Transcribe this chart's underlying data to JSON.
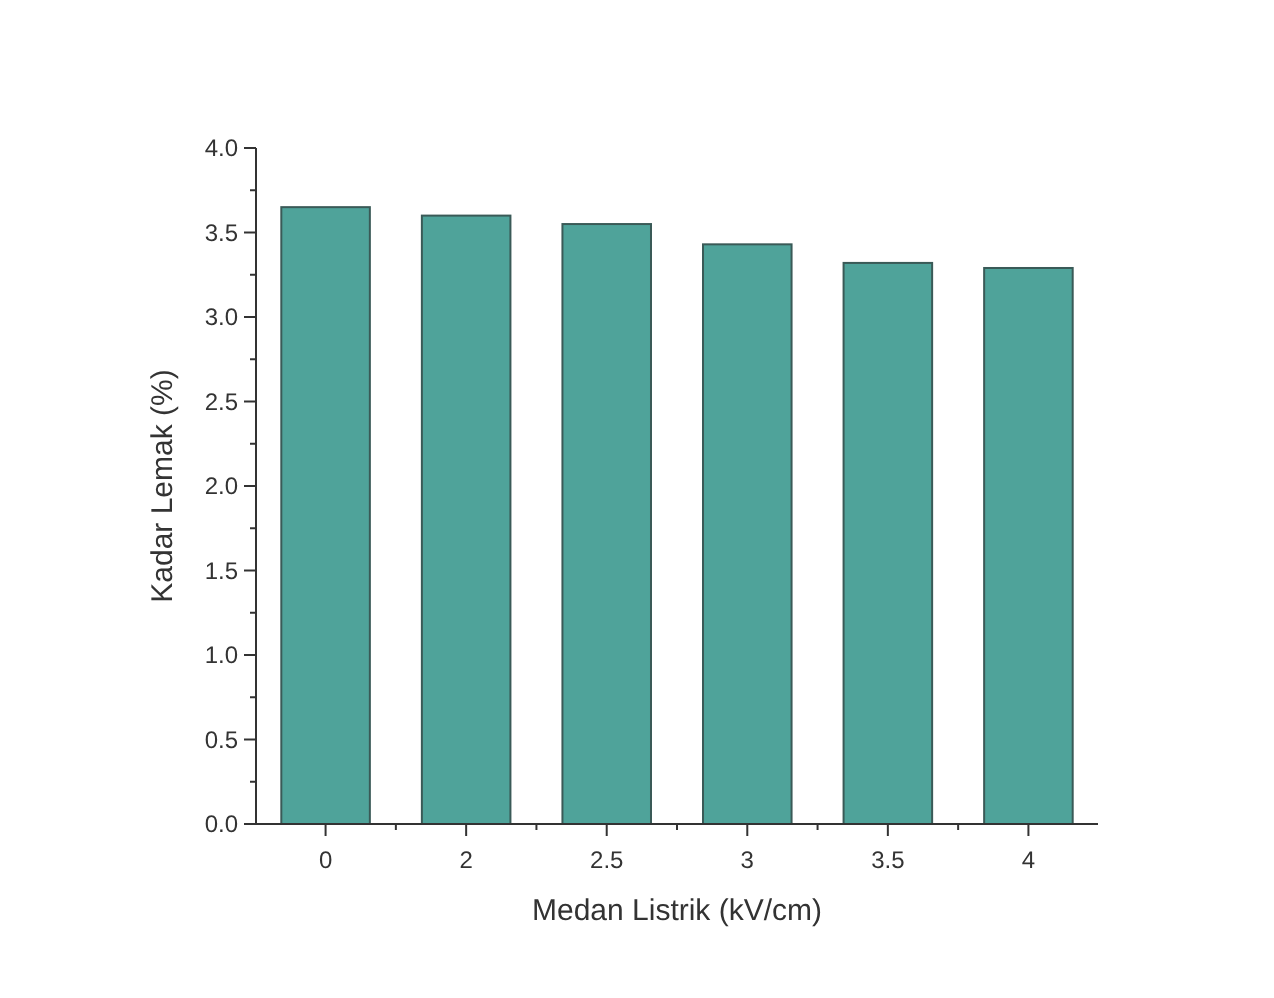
{
  "chart_data": {
    "type": "bar",
    "xlabel": "Medan Listrik (kV/cm)",
    "ylabel": "Kadar Lemak (%)",
    "categories": [
      "0",
      "2",
      "2.5",
      "3",
      "3.5",
      "4"
    ],
    "values": [
      3.65,
      3.6,
      3.55,
      3.43,
      3.32,
      3.29
    ],
    "color": "#4fa39a",
    "ylim": [
      0,
      4
    ],
    "yticks": [
      {
        "value": 0,
        "label": "0.0"
      },
      {
        "value": 0.25,
        "label": null
      },
      {
        "value": 0.5,
        "label": "0.5"
      },
      {
        "value": 0.75,
        "label": null
      },
      {
        "value": 1,
        "label": "1.0"
      },
      {
        "value": 1.25,
        "label": null
      },
      {
        "value": 1.5,
        "label": "1.5"
      },
      {
        "value": 1.75,
        "label": null
      },
      {
        "value": 2,
        "label": "2.0"
      },
      {
        "value": 2.25,
        "label": null
      },
      {
        "value": 2.5,
        "label": "2.5"
      },
      {
        "value": 2.75,
        "label": null
      },
      {
        "value": 3,
        "label": "3.0"
      },
      {
        "value": 3.25,
        "label": null
      },
      {
        "value": 3.5,
        "label": "3.5"
      },
      {
        "value": 3.75,
        "label": null
      },
      {
        "value": 4,
        "label": "4.0"
      }
    ],
    "grid": false
  }
}
